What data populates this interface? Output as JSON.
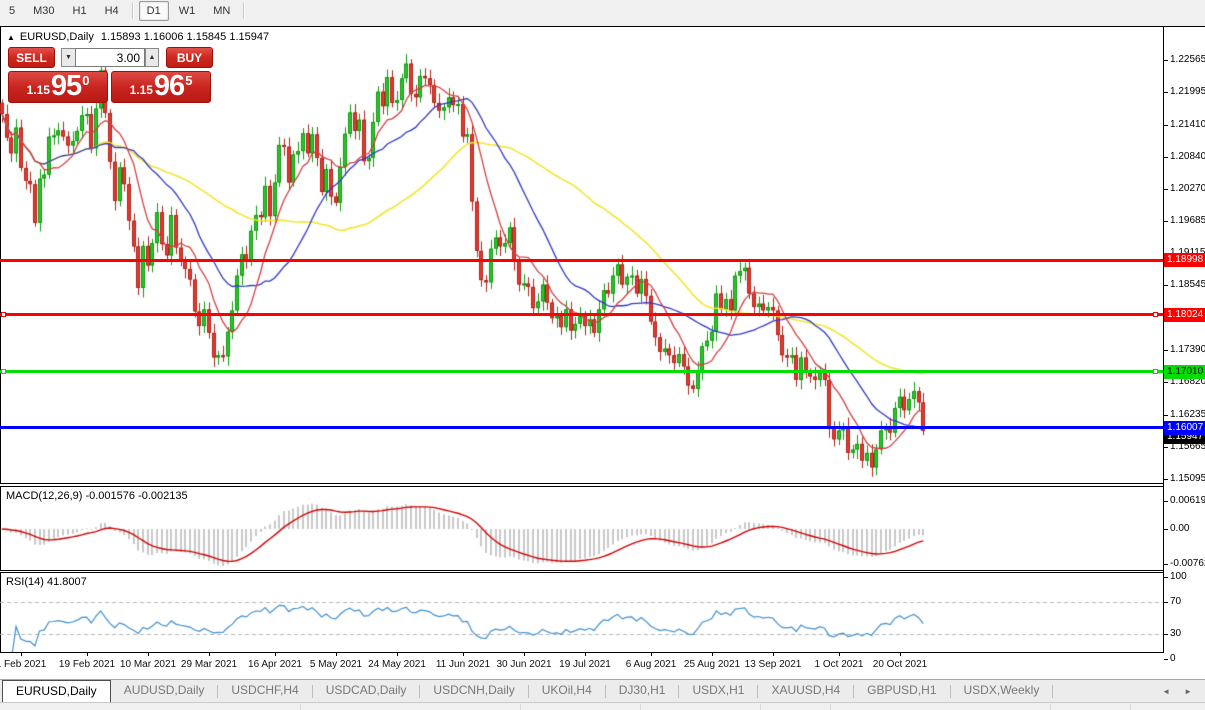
{
  "toolbar": {
    "timeframes": [
      "5",
      "M30",
      "H1",
      "H4",
      "D1",
      "W1",
      "MN"
    ],
    "active": "D1"
  },
  "chart_header": {
    "collapse_icon": "▲",
    "symbol": "EURUSD,Daily",
    "ohlc": "1.15893 1.16006 1.15845 1.15947"
  },
  "trade_panel": {
    "sell_label": "SELL",
    "buy_label": "BUY",
    "volume": "3.00",
    "down_icon": "▼",
    "up_icon": "▲",
    "sell_price": {
      "prefix": "1.15",
      "big": "95",
      "sup": "0"
    },
    "buy_price": {
      "prefix": "1.15",
      "big": "96",
      "sup": "5"
    }
  },
  "price_axis": {
    "ticks": [
      "1.22565",
      "1.21995",
      "1.21410",
      "1.20840",
      "1.20270",
      "1.19685",
      "1.19115",
      "1.18545",
      "1.17960",
      "1.17390",
      "1.16820",
      "1.16235",
      "1.15665",
      "1.15095"
    ],
    "current_price_label": {
      "text": "1.15947",
      "bg": "#000000",
      "fg": "#FFFFFF"
    }
  },
  "hlines": [
    {
      "price": 1.18998,
      "label": "1.18998",
      "color": "#FF0000",
      "label_fg": "#FFFFFF",
      "thickness": 3,
      "handles": false
    },
    {
      "price": 1.18024,
      "label": "1.18024",
      "color": "#FF0000",
      "label_fg": "#FFFFFF",
      "thickness": 3,
      "handles": true
    },
    {
      "price": 1.1701,
      "label": "1.17010",
      "color": "#00DD00",
      "label_fg": "#000000",
      "thickness": 3,
      "handles": true
    },
    {
      "price": 1.16007,
      "label": "1.16007",
      "color": "#0000FF",
      "label_fg": "#FFFFFF",
      "thickness": 3,
      "handles": false
    }
  ],
  "indicators": {
    "macd": {
      "label": "MACD(12,26,9) -0.001576 -0.002135",
      "axis_ticks": [
        "0.006193",
        "0.00",
        "-0.00762"
      ],
      "axis_values": [
        0.006193,
        0,
        -0.00762
      ]
    },
    "rsi": {
      "label": "RSI(14) 41.8007",
      "axis_ticks": [
        "100",
        "70",
        "30",
        "0"
      ],
      "axis_values": [
        100,
        70,
        30,
        0
      ],
      "levels": [
        70,
        30
      ]
    }
  },
  "x_axis": {
    "labels": [
      "1 Feb 2021",
      "19 Feb 2021",
      "10 Mar 2021",
      "29 Mar 2021",
      "16 Apr 2021",
      "5 May 2021",
      "24 May 2021",
      "11 Jun 2021",
      "30 Jun 2021",
      "19 Jul 2021",
      "6 Aug 2021",
      "25 Aug 2021",
      "13 Sep 2021",
      "1 Oct 2021",
      "20 Oct 2021"
    ],
    "indices": [
      4,
      18,
      31,
      44,
      58,
      71,
      84,
      98,
      111,
      124,
      138,
      151,
      164,
      178,
      191
    ]
  },
  "tabs": {
    "items": [
      "EURUSD,Daily",
      "AUDUSD,Daily",
      "USDCHF,H4",
      "USDCAD,Daily",
      "USDCNH,Daily",
      "UKOil,H4",
      "DJ30,H1",
      "USDX,H1",
      "XAUUSD,H4",
      "GBPUSD,H1",
      "USDX,Weekly"
    ],
    "active_index": 0,
    "scroll_left_icon": "◄",
    "scroll_right_icon": "►"
  },
  "colors": {
    "bull_fill": "#2EC32E",
    "bull_stroke": "#0F9B0F",
    "bear_fill": "#E53B31",
    "bear_stroke": "#B2241C",
    "ma_fast": "#D34141",
    "ma_mid": "#3039C8",
    "ma_slow": "#F2E530",
    "macd_hist": "#C8C8C8",
    "macd_signal": "#D40000",
    "rsi_line": "#4090D0",
    "level_dash": "#B4B4B4"
  },
  "chart_data": {
    "type": "candlestick",
    "symbol": "EURUSD",
    "timeframe": "Daily",
    "ylim": [
      1.1502,
      1.23135
    ],
    "first_open": 1.218,
    "ma_periods": {
      "fast": 9,
      "mid": 21,
      "slow": 50
    },
    "macd_params": [
      12,
      26,
      9
    ],
    "rsi_period": 14,
    "closes": [
      1.216,
      1.2118,
      1.209,
      1.2136,
      1.2064,
      1.2041,
      1.2035,
      1.1966,
      1.2045,
      1.2052,
      1.212,
      1.2122,
      1.2131,
      1.212,
      1.2104,
      1.2112,
      1.213,
      1.2158,
      1.216,
      1.2099,
      1.217,
      1.2238,
      1.2162,
      1.2075,
      1.2005,
      1.2065,
      1.2035,
      1.197,
      1.1924,
      1.185,
      1.1925,
      1.189,
      1.193,
      1.1985,
      1.1928,
      1.1908,
      1.198,
      1.1922,
      1.19,
      1.1884,
      1.1865,
      1.1808,
      1.1782,
      1.1812,
      1.177,
      1.1726,
      1.173,
      1.1728,
      1.1772,
      1.181,
      1.1872,
      1.191,
      1.1898,
      1.1952,
      1.198,
      1.1976,
      1.2032,
      1.1978,
      1.2038,
      1.2105,
      1.2102,
      1.2038,
      1.2088,
      1.2094,
      1.2126,
      1.209,
      1.2124,
      1.2082,
      1.2021,
      1.2062,
      1.2013,
      1.2002,
      1.2066,
      1.2125,
      1.2163,
      1.213,
      1.215,
      1.2076,
      1.2082,
      1.2146,
      1.22,
      1.2174,
      1.2226,
      1.218,
      1.2185,
      1.2224,
      1.225,
      1.2196,
      1.219,
      1.2228,
      1.2224,
      1.2212,
      1.218,
      1.2166,
      1.2172,
      1.219,
      1.2176,
      1.2178,
      1.212,
      1.2124,
      1.2004,
      1.1916,
      1.1864,
      1.186,
      1.192,
      1.194,
      1.1924,
      1.193,
      1.1958,
      1.1898,
      1.1856,
      1.1858,
      1.1852,
      1.1814,
      1.1826,
      1.1856,
      1.1824,
      1.1796,
      1.18,
      1.178,
      1.1812,
      1.1774,
      1.1786,
      1.18,
      1.1782,
      1.1794,
      1.177,
      1.1812,
      1.1846,
      1.184,
      1.1872,
      1.1892,
      1.1856,
      1.187,
      1.1872,
      1.184,
      1.1866,
      1.1836,
      1.179,
      1.1762,
      1.1736,
      1.1742,
      1.173,
      1.1716,
      1.1732,
      1.171,
      1.1676,
      1.167,
      1.1702,
      1.1746,
      1.1756,
      1.1772,
      1.184,
      1.1812,
      1.183,
      1.181,
      1.1872,
      1.188,
      1.1886,
      1.184,
      1.1816,
      1.1822,
      1.181,
      1.1816,
      1.181,
      1.1766,
      1.173,
      1.1726,
      1.173,
      1.1686,
      1.1726,
      1.17,
      1.1692,
      1.1686,
      1.17,
      1.1686,
      1.16,
      1.158,
      1.1596,
      1.1602,
      1.1556,
      1.1562,
      1.1572,
      1.1542,
      1.1556,
      1.153,
      1.1562,
      1.1596,
      1.1602,
      1.1592,
      1.1636,
      1.1656,
      1.1632,
      1.1652,
      1.1666,
      1.1646,
      1.1595
    ]
  }
}
